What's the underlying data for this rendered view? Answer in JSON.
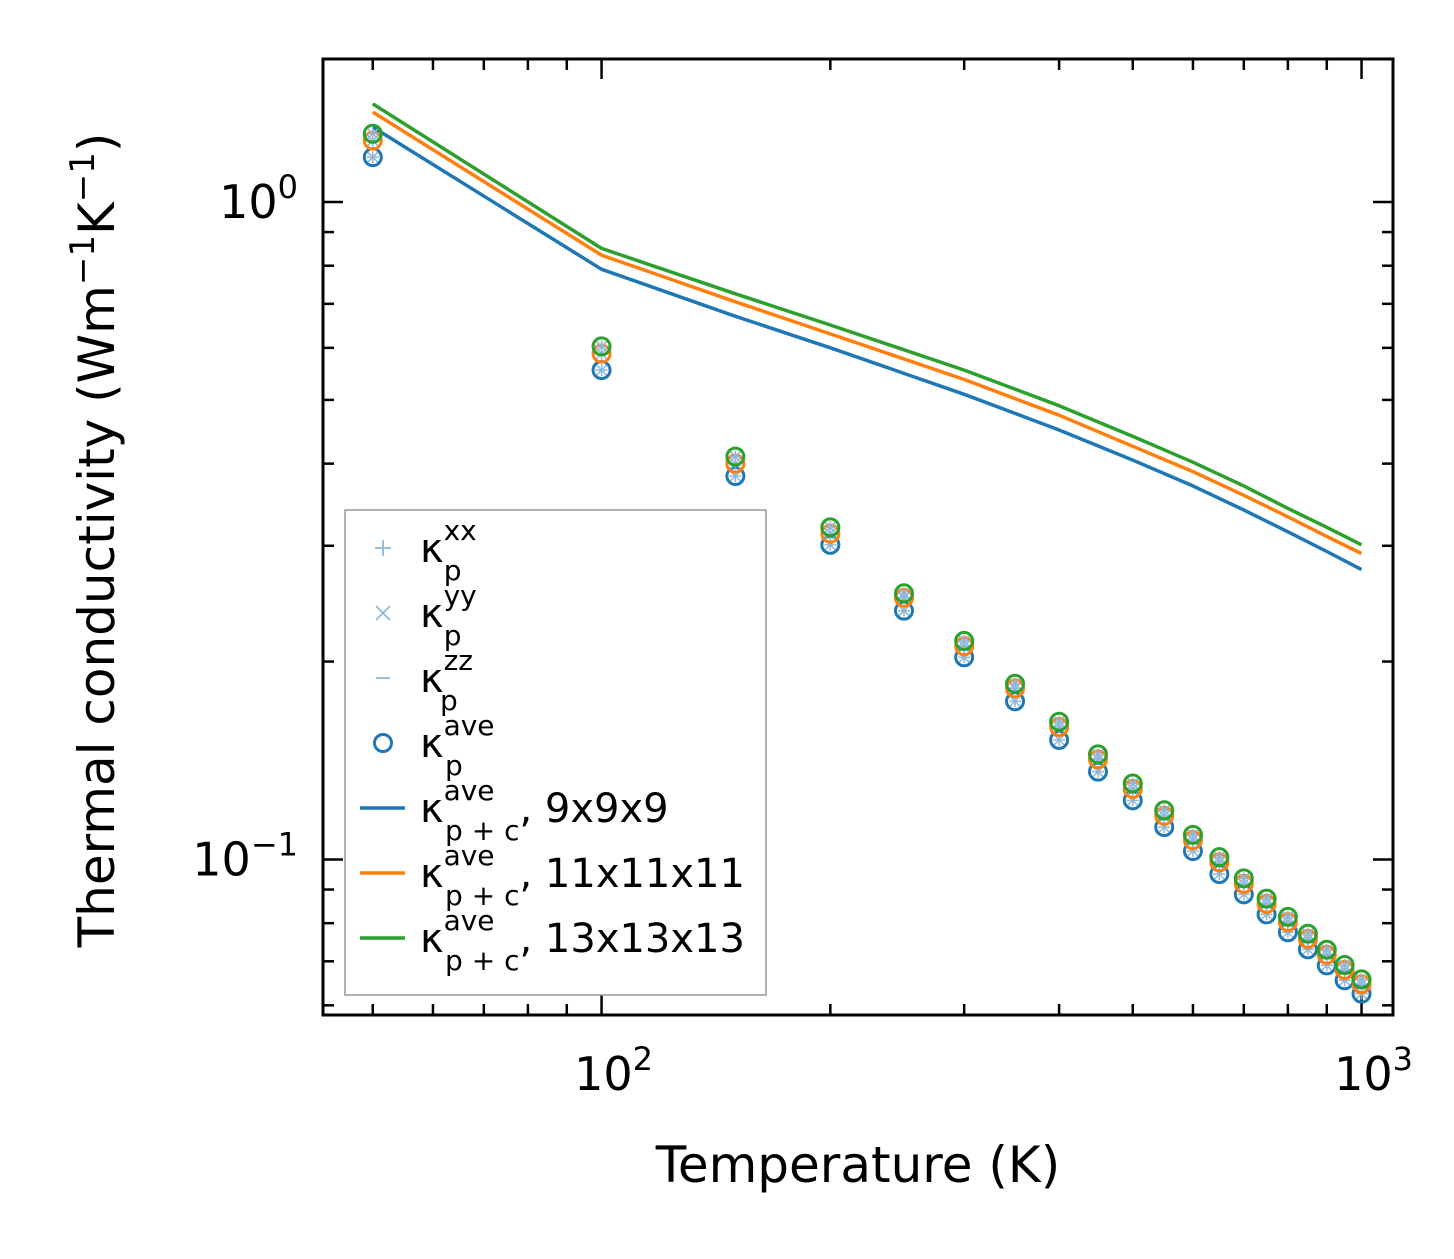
{
  "chart_data": {
    "type": "line+scatter",
    "xscale": "log",
    "yscale": "log",
    "xlabel": "Temperature (K)",
    "ylabel": {
      "base": "Thermal conductivity (Wm",
      "sup1": "−1",
      "mid": "K",
      "sup2": "−1",
      "end": ")"
    },
    "xlim": [
      43,
      1100
    ],
    "ylim": [
      0.058,
      1.65
    ],
    "xticks": [
      {
        "value": 100,
        "base": "10",
        "exp": "2"
      },
      {
        "value": 1000,
        "base": "10",
        "exp": "3"
      }
    ],
    "yticks": [
      {
        "value": 0.1,
        "base": "10",
        "exp": "−1"
      },
      {
        "value": 1.0,
        "base": "10",
        "exp": "0"
      }
    ],
    "grid": false,
    "legend_position": "bottom-left",
    "colors": {
      "blue": "#1f77b4",
      "orange": "#ff7f0e",
      "green": "#2ca02c",
      "light_blue": "#8fb7d9"
    },
    "temperatures": [
      50,
      100,
      150,
      200,
      250,
      300,
      350,
      400,
      450,
      500,
      550,
      600,
      650,
      700,
      750,
      800,
      850,
      900,
      950,
      1000
    ],
    "line_series": [
      {
        "name": "κ_p+c^ave, 9x9x9",
        "label_main": "κ",
        "label_sup": "ave",
        "label_sub": "p + c",
        "label_suffix": ", 9x9x9",
        "color": "#1f77b4",
        "x": [
          50,
          100,
          150,
          200,
          300,
          400,
          500,
          600,
          700,
          800,
          900,
          1000
        ],
        "values": [
          1.3,
          0.79,
          0.67,
          0.6,
          0.51,
          0.45,
          0.405,
          0.37,
          0.34,
          0.315,
          0.294,
          0.276
        ]
      },
      {
        "name": "κ_p+c^ave, 11x11x11",
        "label_main": "κ",
        "label_sup": "ave",
        "label_sub": "p + c",
        "label_suffix": ", 11x11x11",
        "color": "#ff7f0e",
        "x": [
          50,
          100,
          150,
          200,
          300,
          400,
          500,
          600,
          700,
          800,
          900,
          1000
        ],
        "values": [
          1.37,
          0.83,
          0.705,
          0.63,
          0.537,
          0.474,
          0.425,
          0.389,
          0.358,
          0.332,
          0.31,
          0.292
        ]
      },
      {
        "name": "κ_p+c^ave, 13x13x13",
        "label_main": "κ",
        "label_sup": "ave",
        "label_sub": "p + c",
        "label_suffix": ", 13x13x13",
        "color": "#2ca02c",
        "x": [
          50,
          100,
          150,
          200,
          300,
          400,
          500,
          600,
          700,
          800,
          900,
          1000
        ],
        "values": [
          1.41,
          0.85,
          0.725,
          0.65,
          0.555,
          0.49,
          0.44,
          0.402,
          0.37,
          0.342,
          0.32,
          0.301
        ]
      }
    ],
    "marker_series": [
      {
        "name": "κ_p^xx",
        "label_main": "κ",
        "label_sup": "xx",
        "label_sub": "p",
        "marker": "plus",
        "color": "#8fb7d9"
      },
      {
        "name": "κ_p^yy",
        "label_main": "κ",
        "label_sup": "yy",
        "label_sub": "p",
        "marker": "x",
        "color": "#8fb7d9"
      },
      {
        "name": "κ_p^zz",
        "label_main": "κ",
        "label_sup": "zz",
        "label_sub": "p",
        "marker": "dash",
        "color": "#8fb7d9"
      },
      {
        "name": "κ_p^ave",
        "label_main": "κ",
        "label_sup": "ave",
        "label_sub": "p",
        "marker": "circle",
        "color": "#1f77b4"
      }
    ],
    "point_series": [
      {
        "name": "κ_p^ave (9x9x9)",
        "color": "#1f77b4",
        "values": [
          1.17,
          0.555,
          0.383,
          0.301,
          0.239,
          0.203,
          0.174,
          0.152,
          0.136,
          0.123,
          0.112,
          0.103,
          0.095,
          0.0885,
          0.0825,
          0.0775,
          0.073,
          0.069,
          0.0655,
          0.0625
        ]
      },
      {
        "name": "κ_p^ave (11x11x11)",
        "color": "#ff7f0e",
        "values": [
          1.24,
          0.588,
          0.4,
          0.313,
          0.25,
          0.211,
          0.182,
          0.159,
          0.142,
          0.128,
          0.1165,
          0.107,
          0.099,
          0.0918,
          0.0856,
          0.0803,
          0.0757,
          0.0716,
          0.0679,
          0.0646
        ]
      },
      {
        "name": "κ_p^ave (13x13x13)",
        "color": "#2ca02c",
        "values": [
          1.27,
          0.603,
          0.41,
          0.32,
          0.254,
          0.215,
          0.185,
          0.162,
          0.1445,
          0.1305,
          0.1188,
          0.109,
          0.1008,
          0.0936,
          0.0872,
          0.0818,
          0.0771,
          0.0729,
          0.0691,
          0.0657
        ]
      }
    ]
  }
}
